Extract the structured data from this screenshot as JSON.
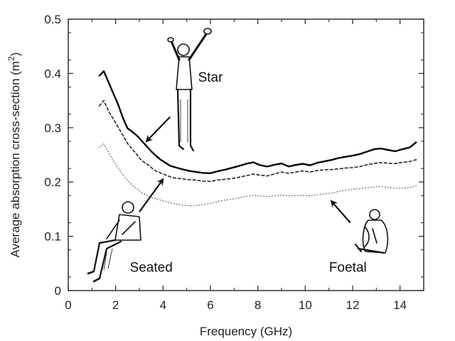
{
  "chart_data": {
    "type": "line",
    "title": "",
    "xlabel": "Frequency (GHz)",
    "ylabel_main": "Average absorption cross-section (m",
    "ylabel_sup": "2",
    "ylabel_close": ")",
    "xlim": [
      0,
      15
    ],
    "ylim": [
      0,
      0.5
    ],
    "x_ticks": [
      "0",
      "2",
      "4",
      "6",
      "8",
      "10",
      "12",
      "14"
    ],
    "y_ticks": [
      "0",
      "0.1",
      "0.2",
      "0.3",
      "0.4",
      "0.5"
    ],
    "grid": false,
    "series": [
      {
        "name": "Star",
        "style": "solid",
        "color": "#000000",
        "x": [
          1.3,
          1.5,
          1.7,
          1.9,
          2.1,
          2.3,
          2.5,
          2.7,
          2.9,
          3.1,
          3.3,
          3.5,
          3.7,
          3.9,
          4.1,
          4.3,
          4.5,
          4.8,
          5.1,
          5.4,
          5.7,
          6.0,
          6.3,
          6.6,
          6.9,
          7.2,
          7.5,
          7.8,
          8.1,
          8.4,
          8.7,
          9.0,
          9.3,
          9.6,
          9.9,
          10.2,
          10.5,
          10.8,
          11.1,
          11.4,
          11.7,
          12.0,
          12.3,
          12.6,
          12.9,
          13.2,
          13.5,
          13.8,
          14.1,
          14.4,
          14.7
        ],
        "y": [
          0.395,
          0.405,
          0.385,
          0.365,
          0.345,
          0.32,
          0.3,
          0.293,
          0.285,
          0.275,
          0.265,
          0.255,
          0.247,
          0.24,
          0.235,
          0.23,
          0.228,
          0.225,
          0.222,
          0.22,
          0.218,
          0.217,
          0.22,
          0.222,
          0.225,
          0.228,
          0.232,
          0.235,
          0.23,
          0.228,
          0.232,
          0.235,
          0.23,
          0.233,
          0.235,
          0.232,
          0.236,
          0.238,
          0.24,
          0.243,
          0.245,
          0.247,
          0.25,
          0.255,
          0.26,
          0.262,
          0.26,
          0.258,
          0.262,
          0.265,
          0.275
        ]
      },
      {
        "name": "Seated",
        "style": "dashed",
        "color": "#222222",
        "x": [
          1.3,
          1.5,
          1.7,
          1.9,
          2.1,
          2.3,
          2.5,
          2.7,
          2.9,
          3.1,
          3.3,
          3.5,
          3.7,
          3.9,
          4.1,
          4.3,
          4.5,
          4.8,
          5.1,
          5.4,
          5.7,
          6.0,
          6.3,
          6.6,
          6.9,
          7.2,
          7.5,
          7.8,
          8.1,
          8.4,
          8.7,
          9.0,
          9.3,
          9.6,
          9.9,
          10.2,
          10.5,
          10.8,
          11.1,
          11.4,
          11.7,
          12.0,
          12.3,
          12.6,
          12.9,
          13.2,
          13.5,
          13.8,
          14.1,
          14.4,
          14.7
        ],
        "y": [
          0.34,
          0.35,
          0.33,
          0.315,
          0.3,
          0.285,
          0.27,
          0.26,
          0.25,
          0.24,
          0.235,
          0.228,
          0.222,
          0.218,
          0.214,
          0.21,
          0.207,
          0.205,
          0.203,
          0.202,
          0.2,
          0.2,
          0.203,
          0.205,
          0.207,
          0.21,
          0.213,
          0.216,
          0.214,
          0.212,
          0.215,
          0.218,
          0.215,
          0.217,
          0.219,
          0.217,
          0.22,
          0.222,
          0.223,
          0.225,
          0.227,
          0.228,
          0.23,
          0.233,
          0.235,
          0.236,
          0.234,
          0.233,
          0.235,
          0.236,
          0.24
        ]
      },
      {
        "name": "Foetal",
        "style": "dotted",
        "color": "#666666",
        "x": [
          1.3,
          1.5,
          1.7,
          1.9,
          2.1,
          2.3,
          2.5,
          2.7,
          2.9,
          3.1,
          3.3,
          3.5,
          3.7,
          3.9,
          4.1,
          4.3,
          4.5,
          4.8,
          5.1,
          5.4,
          5.7,
          6.0,
          6.3,
          6.6,
          6.9,
          7.2,
          7.5,
          7.8,
          8.1,
          8.4,
          8.7,
          9.0,
          9.3,
          9.6,
          9.9,
          10.2,
          10.5,
          10.8,
          11.1,
          11.4,
          11.7,
          12.0,
          12.3,
          12.6,
          12.9,
          13.2,
          13.5,
          13.8,
          14.1,
          14.4,
          14.7
        ],
        "y": [
          0.262,
          0.27,
          0.255,
          0.24,
          0.228,
          0.215,
          0.205,
          0.195,
          0.188,
          0.18,
          0.175,
          0.17,
          0.168,
          0.165,
          0.163,
          0.161,
          0.16,
          0.158,
          0.157,
          0.158,
          0.16,
          0.162,
          0.165,
          0.167,
          0.168,
          0.17,
          0.172,
          0.174,
          0.173,
          0.172,
          0.174,
          0.176,
          0.175,
          0.176,
          0.177,
          0.176,
          0.178,
          0.179,
          0.18,
          0.182,
          0.184,
          0.185,
          0.186,
          0.188,
          0.19,
          0.191,
          0.19,
          0.189,
          0.19,
          0.191,
          0.195
        ]
      }
    ],
    "annotations": [
      {
        "text": "Star",
        "label_at": [
          6.0,
          0.385
        ],
        "arrow_from": [
          4.3,
          0.32
        ],
        "arrow_to": [
          3.3,
          0.275
        ]
      },
      {
        "text": "Seated",
        "label_at": [
          3.5,
          0.035
        ],
        "arrow_from": [
          3.0,
          0.145
        ],
        "arrow_to": [
          4.0,
          0.205
        ]
      },
      {
        "text": "Foetal",
        "label_at": [
          11.8,
          0.035
        ],
        "arrow_from": [
          11.9,
          0.125
        ],
        "arrow_to": [
          11.1,
          0.165
        ]
      }
    ]
  }
}
